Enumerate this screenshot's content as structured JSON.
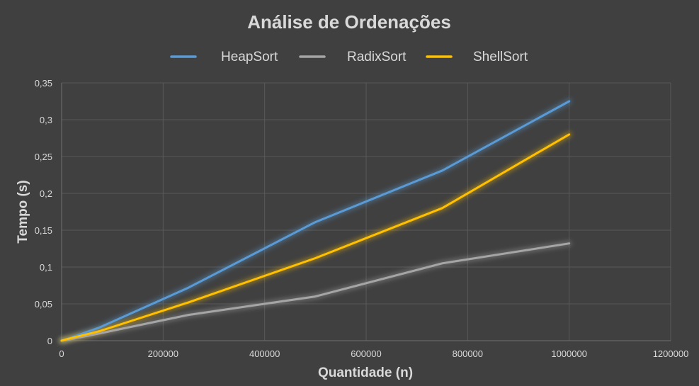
{
  "chart_data": {
    "type": "line",
    "title": "Análise de Ordenações",
    "xlabel": "Quantidade (n)",
    "ylabel": "Tempo (s)",
    "xlim": [
      0,
      1200000
    ],
    "ylim": [
      0,
      0.35
    ],
    "x_ticks": [
      "0",
      "200000",
      "400000",
      "600000",
      "800000",
      "1000000",
      "1200000"
    ],
    "y_ticks": [
      "0",
      "0,05",
      "0,1",
      "0,15",
      "0,2",
      "0,25",
      "0,3",
      "0,35"
    ],
    "grid": true,
    "legend": "top",
    "series": [
      {
        "name": "HeapSort",
        "color": "#5b9bd5",
        "x": [
          0,
          10000,
          75000,
          250000,
          500000,
          750000,
          1000000
        ],
        "y": [
          0,
          0.002,
          0.018,
          0.072,
          0.161,
          0.231,
          0.325
        ]
      },
      {
        "name": "RadixSort",
        "color": "#a5a5a5",
        "x": [
          0,
          10000,
          75000,
          250000,
          500000,
          750000,
          1000000
        ],
        "y": [
          0,
          0.001,
          0.01,
          0.035,
          0.06,
          0.105,
          0.132
        ]
      },
      {
        "name": "ShellSort",
        "color": "#ffc000",
        "x": [
          0,
          10000,
          75000,
          250000,
          500000,
          750000,
          1000000
        ],
        "y": [
          0,
          0.002,
          0.013,
          0.052,
          0.112,
          0.18,
          0.28
        ]
      }
    ]
  }
}
